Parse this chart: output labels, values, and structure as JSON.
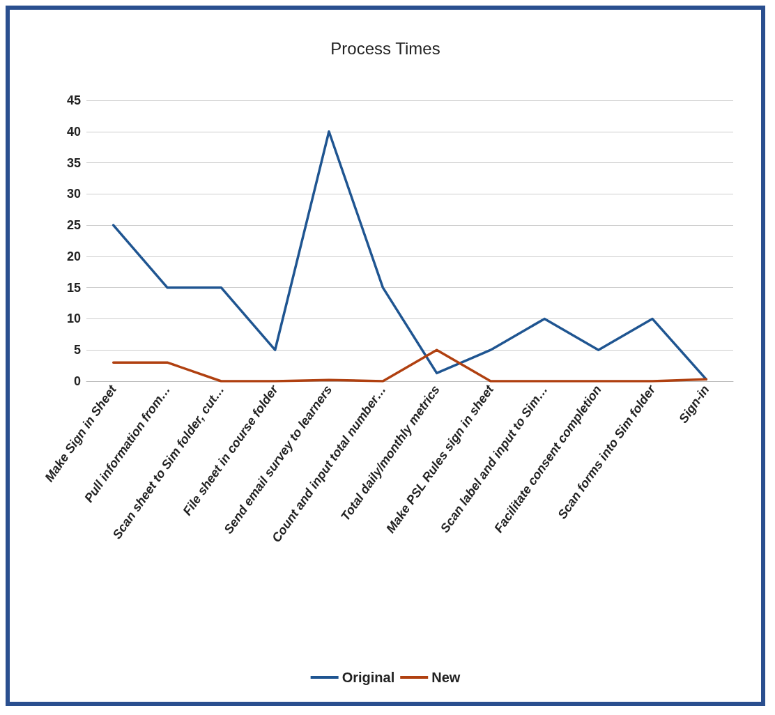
{
  "chart_data": {
    "type": "line",
    "title": "Process Times",
    "categories": [
      "Make Sign in Sheet",
      "Pull information from…",
      "Scan sheet to Sim folder, cut…",
      "File sheet in course folder",
      "Send email survey to learners",
      "Count and input total number…",
      "Total daily/monthly metrics",
      "Make PSL Rules sign in sheet",
      "Scan label and input to Sim…",
      "Facilitate consent completion",
      "Scan forms into Sim folder",
      "Sign-in"
    ],
    "series": [
      {
        "name": "Original",
        "color": "#1f5591",
        "values": [
          25,
          15,
          15,
          5,
          40,
          15,
          1.3,
          5,
          10,
          5,
          10,
          0.3
        ]
      },
      {
        "name": "New",
        "color": "#b04010",
        "values": [
          3,
          3,
          0,
          0,
          0.2,
          0,
          5,
          0,
          0,
          0,
          0,
          0.3
        ]
      }
    ],
    "ylim": [
      0,
      45
    ],
    "yticks": [
      0,
      5,
      10,
      15,
      20,
      25,
      30,
      35,
      40,
      45
    ],
    "grid": "y",
    "legend": "bottom",
    "marker": "none",
    "line_style": "solid"
  }
}
